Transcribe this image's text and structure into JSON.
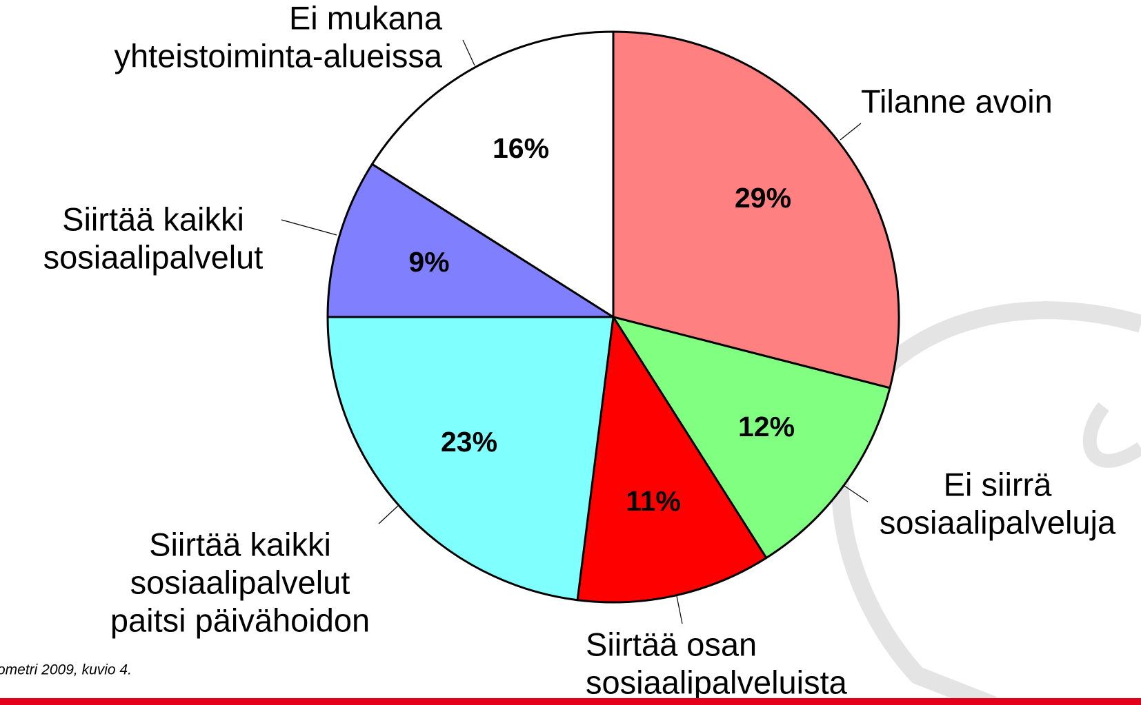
{
  "chart_data": {
    "type": "pie",
    "categories": [
      [
        "Tilanne avoin"
      ],
      [
        "Ei siirrä",
        "sosiaalipalveluja"
      ],
      [
        "Siirtää osan",
        "sosiaalipalveluista"
      ],
      [
        "Siirtää kaikki",
        "sosiaalipalvelut",
        "paitsi päivähoidon"
      ],
      [
        "Siirtää kaikki",
        "sosiaalipalvelut"
      ],
      [
        "Ei mukana",
        "yhteistoiminta-alueissa"
      ]
    ],
    "values": [
      29,
      12,
      11,
      23,
      9,
      16
    ],
    "value_labels": [
      "29%",
      "12%",
      "11%",
      "23%",
      "9%",
      "16%"
    ],
    "colors": [
      "#ff8080",
      "#80ff80",
      "#ff0000",
      "#80ffff",
      "#8080ff",
      "#ffffff"
    ],
    "source": "ometri 2009, kuvio 4."
  }
}
